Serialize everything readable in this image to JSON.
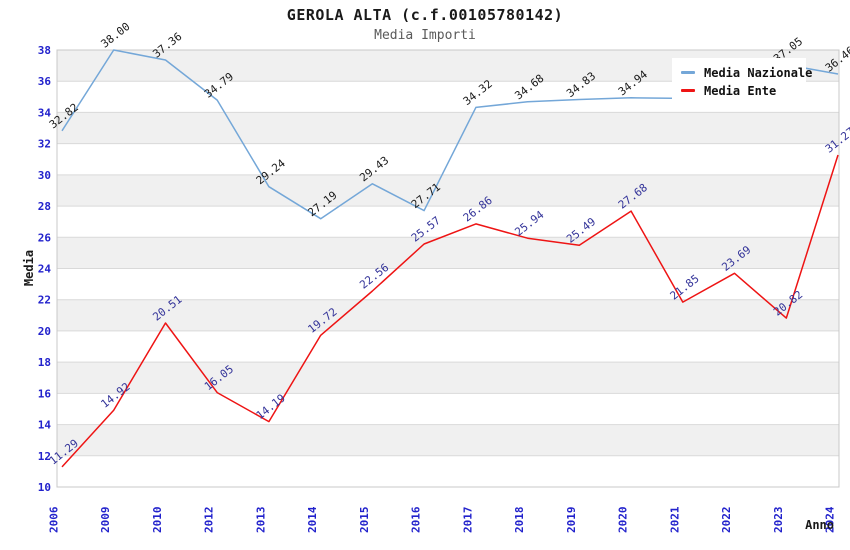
{
  "chart_data": {
    "type": "line",
    "title": "GEROLA ALTA (c.f.00105780142)",
    "subtitle": "Media Importi",
    "xlabel": "Anno",
    "ylabel": "Media",
    "ylim": [
      10,
      38
    ],
    "ytick_step": 2,
    "grid": true,
    "band_color": "#f0f0f0",
    "gridline_color": "#d9d9d9",
    "plot_border_color": "#c8c8c8",
    "tick_label_color": "#2222cc",
    "legend_position": "top-right",
    "categories": [
      "2006",
      "2009",
      "2010",
      "2012",
      "2013",
      "2014",
      "2015",
      "2016",
      "2017",
      "2018",
      "2019",
      "2020",
      "2021",
      "2022",
      "2023",
      "2024"
    ],
    "series": [
      {
        "name": "Media Nazionale",
        "color": "#74a7d8",
        "label_color": "#1a1a1a",
        "values": [
          32.82,
          38.0,
          37.36,
          34.79,
          29.24,
          27.19,
          29.43,
          27.71,
          34.32,
          34.68,
          34.83,
          34.94,
          34.9,
          36.0,
          37.05,
          36.46
        ],
        "labels": [
          "32.82",
          "38.00",
          "37.36",
          "34.79",
          "29.24",
          "27.19",
          "29.43",
          "27.71",
          "34.32",
          "34.68",
          "34.83",
          "34.94",
          "",
          "",
          "37.05",
          "36.46"
        ],
        "labels_hidden_by_legend": [
          "2021",
          "2022"
        ]
      },
      {
        "name": "Media Ente",
        "color": "#ee1414",
        "label_color": "#333399",
        "values": [
          11.29,
          14.92,
          20.51,
          16.05,
          14.19,
          19.72,
          22.56,
          25.57,
          26.86,
          25.94,
          25.49,
          27.68,
          21.85,
          23.69,
          20.82,
          31.27
        ],
        "labels": [
          "11.29",
          "14.92",
          "20.51",
          "16.05",
          "14.19",
          "19.72",
          "22.56",
          "25.57",
          "26.86",
          "25.94",
          "25.49",
          "27.68",
          "21.85",
          "23.69",
          "20.82",
          "31.27"
        ],
        "labels_hidden_by_legend": []
      }
    ]
  }
}
